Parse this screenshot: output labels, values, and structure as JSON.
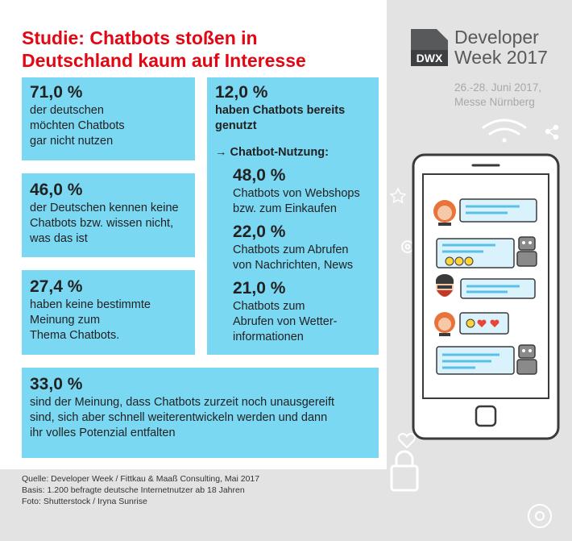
{
  "title": {
    "line1": "Studie: Chatbots stoßen in",
    "line2": "Deutschland kaum auf Interesse"
  },
  "stats": {
    "box1": {
      "value": "71,0 %",
      "text": "der deutschen\nmöchten Chatbots\ngar nicht nutzen"
    },
    "box2": {
      "value": "46,0 %",
      "text": "der Deutschen kennen keine\nChatbots bzw. wissen nicht,\nwas das ist"
    },
    "box3": {
      "value": "27,4 %",
      "text": "haben keine bestimmte\nMeinung zum\nThema Chatbots."
    },
    "box4": {
      "value": "12,0 %",
      "text": "haben Chatbots bereits\ngenutzt",
      "subheader": "→ Chatbot-Nutzung:",
      "items": [
        {
          "value": "48,0 %",
          "text": "Chatbots von Webshops\nbzw. zum Einkaufen"
        },
        {
          "value": "22,0 %",
          "text": "Chatbots zum Abrufen\nvon Nachrichten, News"
        },
        {
          "value": "21,0 %",
          "text": "Chatbots zum\nAbrufen von Wetter-\ninformationen"
        }
      ]
    },
    "box5": {
      "value": "33,0 %",
      "text": "sind der Meinung, dass Chatbots zurzeit noch unausgereift\nsind, sich aber schnell weiterentwickeln werden und dann\nihr volles Potenzial entfalten"
    }
  },
  "footer": {
    "source": "Quelle: Developer Week / Fittkau & Maaß Consulting, Mai 2017",
    "basis": "Basis: 1.200 befragte deutsche Internetnutzer ab 18 Jahren",
    "photo": "Foto: Shutterstock / Iryna Sunrise"
  },
  "brand": {
    "logo": "DWX",
    "name_line1": "Developer",
    "name_line2": "Week 2017",
    "date": "26.-28. Juni 2017,",
    "location": "Messe Nürnberg"
  },
  "colors": {
    "title_red": "#e30613",
    "box_blue": "#7ad8f3",
    "panel_gray": "#e3e3e3",
    "bubble_blue": "#d9f2fb",
    "bubble_line": "#5bc0e8",
    "emoji_yellow": "#ffd43b",
    "heart_red": "#e8443a"
  },
  "icons": [
    "wifi-icon",
    "share-icon",
    "star-icon",
    "gear-icon",
    "heart-icon",
    "lock-icon",
    "smartphone-icon",
    "woman-avatar-icon",
    "robot-icon",
    "bearded-man-avatar-icon",
    "smiley-icon"
  ]
}
